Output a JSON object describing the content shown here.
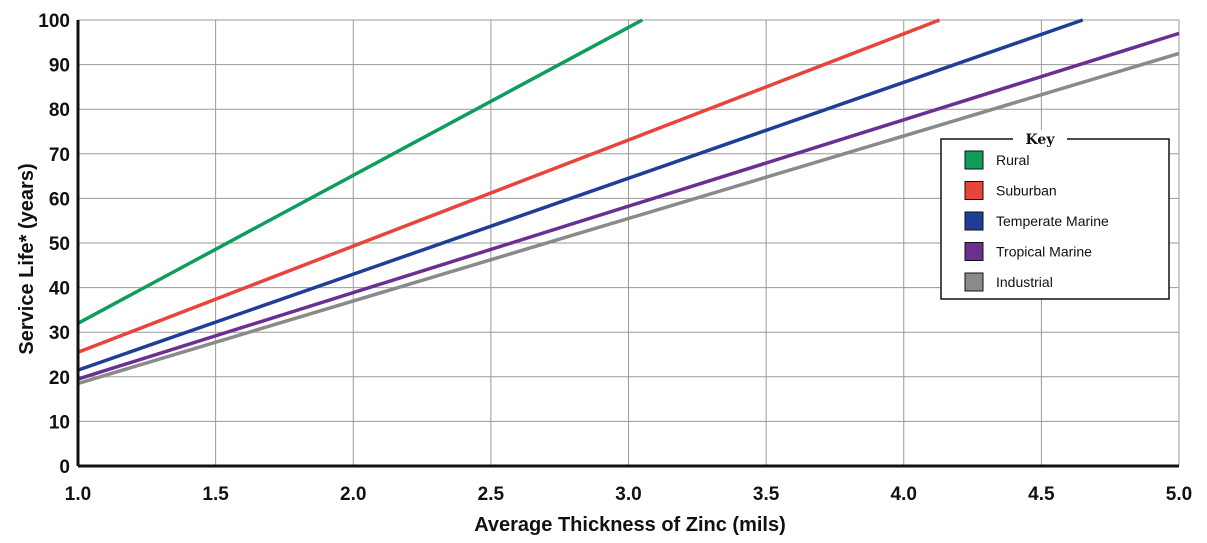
{
  "chart_data": {
    "type": "line",
    "title": "",
    "xlabel": "Average Thickness of Zinc (mils)",
    "ylabel": "Service Life* (years)",
    "xlim": [
      1.0,
      5.0
    ],
    "ylim": [
      0,
      100
    ],
    "x_ticks": [
      "1.0",
      "1.5",
      "2.0",
      "2.5",
      "3.0",
      "3.5",
      "4.0",
      "4.5",
      "5.0"
    ],
    "y_ticks": [
      "0",
      "10",
      "20",
      "30",
      "40",
      "50",
      "60",
      "70",
      "80",
      "90",
      "100"
    ],
    "grid": true,
    "legend": {
      "title": "Key",
      "position": "right"
    },
    "series": [
      {
        "name": "Rural",
        "color": "#0f9d5e",
        "x": [
          1.0,
          3.05
        ],
        "y": [
          32,
          100
        ]
      },
      {
        "name": "Suburban",
        "color": "#e8443a",
        "x": [
          1.0,
          4.13
        ],
        "y": [
          25.5,
          100
        ]
      },
      {
        "name": "Temperate Marine",
        "color": "#1f3f97",
        "x": [
          1.0,
          4.65
        ],
        "y": [
          21.5,
          100
        ]
      },
      {
        "name": "Tropical Marine",
        "color": "#6a2f91",
        "x": [
          1.0,
          5.0
        ],
        "y": [
          19.5,
          97
        ]
      },
      {
        "name": "Industrial",
        "color": "#8a8a8a",
        "x": [
          1.0,
          5.0
        ],
        "y": [
          18.5,
          92.5
        ]
      }
    ]
  }
}
